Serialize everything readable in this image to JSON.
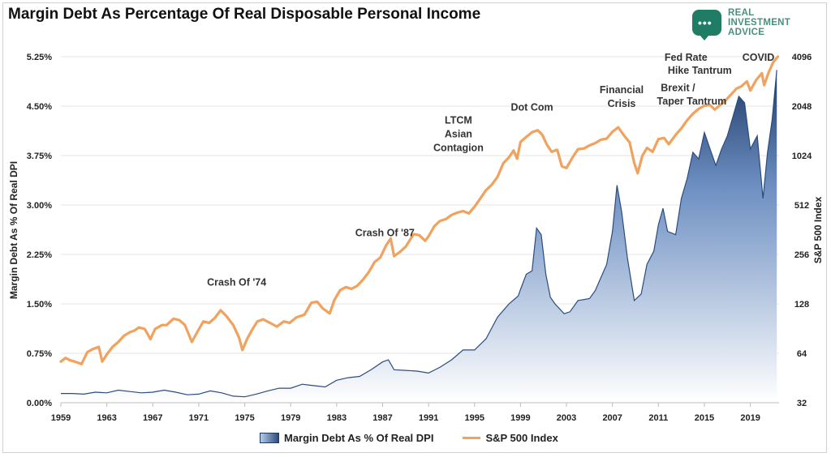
{
  "chart_data": {
    "type": "area",
    "title": "Margin Debt As Percentage Of Real Disposable Personal Income",
    "xlabel": "",
    "ylabel": "Margin Debt As % Of Real DPI",
    "y2label": "S&P 500 Index",
    "xlim": [
      1959,
      2021.5
    ],
    "ylim": [
      0,
      5.25
    ],
    "y2lim": [
      32,
      4096
    ],
    "y2_scale": "log2",
    "x_ticks": [
      "1959",
      "1963",
      "1967",
      "1971",
      "1975",
      "1979",
      "1983",
      "1987",
      "1991",
      "1995",
      "1999",
      "2003",
      "2007",
      "2011",
      "2015",
      "2019"
    ],
    "y_ticks": [
      "0.00%",
      "0.75%",
      "1.50%",
      "2.25%",
      "3.00%",
      "3.75%",
      "4.50%",
      "5.25%"
    ],
    "y2_ticks": [
      "32",
      "64",
      "128",
      "256",
      "512",
      "1024",
      "2048",
      "4096"
    ],
    "grid": true,
    "legend": [
      "Margin Debt As % Of Real DPI",
      "S&P 500 Index"
    ],
    "legend_position": "bottom",
    "annotations": [
      {
        "text": "Crash Of '74",
        "x": 1974.3,
        "y2": 165
      },
      {
        "text": "Crash Of '87",
        "x": 1987.2,
        "y2": 330
      },
      {
        "text": "LTCM",
        "x": 1993.6,
        "y2": 1600
      },
      {
        "text": "Asian",
        "x": 1993.6,
        "y2": 1320
      },
      {
        "text": "Contagion",
        "x": 1993.6,
        "y2": 1090
      },
      {
        "text": "Dot Com",
        "x": 2000.0,
        "y2": 1920
      },
      {
        "text": "Financial",
        "x": 2007.8,
        "y2": 2450
      },
      {
        "text": "Crisis",
        "x": 2007.8,
        "y2": 2020
      },
      {
        "text": "Brexit /",
        "x": 2012.7,
        "y2": 2530
      },
      {
        "text": "Taper Tantrum",
        "x": 2013.9,
        "y2": 2100
      },
      {
        "text": "Fed Rate",
        "x": 2013.4,
        "y2": 3880
      },
      {
        "text": "Hike Tantrum",
        "x": 2014.6,
        "y2": 3220
      },
      {
        "text": "COVID",
        "x": 2019.7,
        "y2": 3880
      }
    ],
    "series": [
      {
        "name": "Margin Debt As % Of Real DPI",
        "type": "area",
        "axis": "left",
        "color": "#2b4c7e",
        "points": [
          [
            1959,
            0.14
          ],
          [
            1960,
            0.14
          ],
          [
            1961,
            0.13
          ],
          [
            1962,
            0.16
          ],
          [
            1963,
            0.15
          ],
          [
            1964,
            0.19
          ],
          [
            1965,
            0.17
          ],
          [
            1966,
            0.15
          ],
          [
            1967,
            0.16
          ],
          [
            1968,
            0.19
          ],
          [
            1969,
            0.16
          ],
          [
            1970,
            0.12
          ],
          [
            1971,
            0.13
          ],
          [
            1972,
            0.18
          ],
          [
            1973,
            0.15
          ],
          [
            1974,
            0.1
          ],
          [
            1975,
            0.09
          ],
          [
            1976,
            0.13
          ],
          [
            1977,
            0.18
          ],
          [
            1978,
            0.22
          ],
          [
            1979,
            0.22
          ],
          [
            1980,
            0.28
          ],
          [
            1981,
            0.26
          ],
          [
            1982,
            0.24
          ],
          [
            1983,
            0.34
          ],
          [
            1984,
            0.38
          ],
          [
            1985,
            0.4
          ],
          [
            1986,
            0.5
          ],
          [
            1987,
            0.62
          ],
          [
            1987.5,
            0.65
          ],
          [
            1988,
            0.5
          ],
          [
            1989,
            0.49
          ],
          [
            1990,
            0.48
          ],
          [
            1991,
            0.45
          ],
          [
            1992,
            0.54
          ],
          [
            1993,
            0.65
          ],
          [
            1994,
            0.8
          ],
          [
            1995,
            0.8
          ],
          [
            1996,
            0.97
          ],
          [
            1997,
            1.3
          ],
          [
            1998,
            1.5
          ],
          [
            1998.8,
            1.62
          ],
          [
            1999,
            1.72
          ],
          [
            1999.5,
            1.95
          ],
          [
            2000,
            2.0
          ],
          [
            2000.4,
            2.65
          ],
          [
            2000.8,
            2.55
          ],
          [
            2001.2,
            1.95
          ],
          [
            2001.6,
            1.6
          ],
          [
            2002,
            1.5
          ],
          [
            2002.8,
            1.35
          ],
          [
            2003.3,
            1.38
          ],
          [
            2004,
            1.55
          ],
          [
            2005,
            1.58
          ],
          [
            2005.5,
            1.7
          ],
          [
            2006,
            1.9
          ],
          [
            2006.5,
            2.1
          ],
          [
            2007,
            2.6
          ],
          [
            2007.4,
            3.3
          ],
          [
            2007.8,
            2.9
          ],
          [
            2008.3,
            2.2
          ],
          [
            2008.9,
            1.55
          ],
          [
            2009.5,
            1.65
          ],
          [
            2010,
            2.1
          ],
          [
            2010.6,
            2.3
          ],
          [
            2011,
            2.7
          ],
          [
            2011.4,
            2.95
          ],
          [
            2011.8,
            2.6
          ],
          [
            2012.5,
            2.55
          ],
          [
            2013,
            3.1
          ],
          [
            2013.5,
            3.4
          ],
          [
            2014,
            3.8
          ],
          [
            2014.5,
            3.7
          ],
          [
            2015,
            4.1
          ],
          [
            2015.5,
            3.85
          ],
          [
            2016,
            3.6
          ],
          [
            2016.5,
            3.85
          ],
          [
            2017,
            4.05
          ],
          [
            2017.5,
            4.35
          ],
          [
            2018,
            4.65
          ],
          [
            2018.5,
            4.55
          ],
          [
            2019,
            3.85
          ],
          [
            2019.6,
            4.05
          ],
          [
            2020.1,
            3.1
          ],
          [
            2020.5,
            3.8
          ],
          [
            2020.9,
            4.3
          ],
          [
            2021.3,
            5.05
          ]
        ]
      },
      {
        "name": "S&P 500 Index",
        "type": "line",
        "axis": "right",
        "color": "#f0a25e",
        "points": [
          [
            1959,
            57
          ],
          [
            1959.4,
            60
          ],
          [
            1959.8,
            58
          ],
          [
            1960.2,
            57
          ],
          [
            1960.8,
            55
          ],
          [
            1961.3,
            65
          ],
          [
            1961.8,
            68
          ],
          [
            1962.3,
            70
          ],
          [
            1962.6,
            57
          ],
          [
            1963,
            63
          ],
          [
            1963.5,
            70
          ],
          [
            1964,
            75
          ],
          [
            1964.5,
            82
          ],
          [
            1965,
            86
          ],
          [
            1965.4,
            88
          ],
          [
            1965.8,
            92
          ],
          [
            1966.3,
            90
          ],
          [
            1966.8,
            78
          ],
          [
            1967.2,
            90
          ],
          [
            1967.8,
            95
          ],
          [
            1968.2,
            95
          ],
          [
            1968.8,
            104
          ],
          [
            1969.3,
            102
          ],
          [
            1969.8,
            95
          ],
          [
            1970.4,
            75
          ],
          [
            1970.9,
            87
          ],
          [
            1971.4,
            100
          ],
          [
            1971.9,
            98
          ],
          [
            1972.4,
            105
          ],
          [
            1972.9,
            117
          ],
          [
            1973.4,
            108
          ],
          [
            1974,
            95
          ],
          [
            1974.5,
            80
          ],
          [
            1974.8,
            67
          ],
          [
            1975.2,
            78
          ],
          [
            1975.6,
            88
          ],
          [
            1976.1,
            100
          ],
          [
            1976.6,
            103
          ],
          [
            1977.2,
            98
          ],
          [
            1977.8,
            93
          ],
          [
            1978.4,
            100
          ],
          [
            1978.9,
            98
          ],
          [
            1979.5,
            106
          ],
          [
            1980.2,
            110
          ],
          [
            1980.8,
            130
          ],
          [
            1981.3,
            132
          ],
          [
            1981.8,
            120
          ],
          [
            1982.4,
            112
          ],
          [
            1982.8,
            135
          ],
          [
            1983.3,
            155
          ],
          [
            1983.8,
            162
          ],
          [
            1984.3,
            158
          ],
          [
            1984.8,
            165
          ],
          [
            1985.3,
            180
          ],
          [
            1985.8,
            200
          ],
          [
            1986.3,
            230
          ],
          [
            1986.8,
            245
          ],
          [
            1987.3,
            290
          ],
          [
            1987.7,
            320
          ],
          [
            1988,
            250
          ],
          [
            1988.5,
            265
          ],
          [
            1989,
            285
          ],
          [
            1989.7,
            340
          ],
          [
            1990.2,
            335
          ],
          [
            1990.7,
            310
          ],
          [
            1991,
            330
          ],
          [
            1991.5,
            380
          ],
          [
            1992,
            410
          ],
          [
            1992.5,
            420
          ],
          [
            1993,
            445
          ],
          [
            1993.5,
            460
          ],
          [
            1994,
            470
          ],
          [
            1994.5,
            455
          ],
          [
            1995,
            500
          ],
          [
            1995.5,
            560
          ],
          [
            1996,
            630
          ],
          [
            1996.5,
            680
          ],
          [
            1997,
            760
          ],
          [
            1997.5,
            920
          ],
          [
            1998,
            1000
          ],
          [
            1998.4,
            1100
          ],
          [
            1998.7,
            980
          ],
          [
            1999,
            1240
          ],
          [
            1999.5,
            1330
          ],
          [
            2000,
            1420
          ],
          [
            2000.5,
            1460
          ],
          [
            2000.9,
            1370
          ],
          [
            2001.3,
            1190
          ],
          [
            2001.7,
            1080
          ],
          [
            2002.2,
            1110
          ],
          [
            2002.6,
            880
          ],
          [
            2003,
            860
          ],
          [
            2003.5,
            990
          ],
          [
            2004,
            1120
          ],
          [
            2004.5,
            1130
          ],
          [
            2005,
            1180
          ],
          [
            2005.5,
            1220
          ],
          [
            2006,
            1280
          ],
          [
            2006.5,
            1300
          ],
          [
            2007,
            1430
          ],
          [
            2007.5,
            1520
          ],
          [
            2008,
            1360
          ],
          [
            2008.5,
            1230
          ],
          [
            2008.9,
            920
          ],
          [
            2009.2,
            800
          ],
          [
            2009.6,
            1020
          ],
          [
            2010,
            1140
          ],
          [
            2010.5,
            1080
          ],
          [
            2011,
            1290
          ],
          [
            2011.5,
            1310
          ],
          [
            2011.9,
            1200
          ],
          [
            2012.5,
            1370
          ],
          [
            2013,
            1500
          ],
          [
            2013.5,
            1680
          ],
          [
            2014,
            1840
          ],
          [
            2014.5,
            1970
          ],
          [
            2015,
            2060
          ],
          [
            2015.5,
            2080
          ],
          [
            2015.9,
            1950
          ],
          [
            2016.3,
            2060
          ],
          [
            2016.8,
            2200
          ],
          [
            2017.3,
            2400
          ],
          [
            2017.8,
            2620
          ],
          [
            2018.2,
            2700
          ],
          [
            2018.7,
            2900
          ],
          [
            2019,
            2550
          ],
          [
            2019.5,
            2950
          ],
          [
            2020,
            3250
          ],
          [
            2020.2,
            2750
          ],
          [
            2020.6,
            3300
          ],
          [
            2021,
            3800
          ],
          [
            2021.4,
            4100
          ]
        ]
      }
    ]
  }
}
